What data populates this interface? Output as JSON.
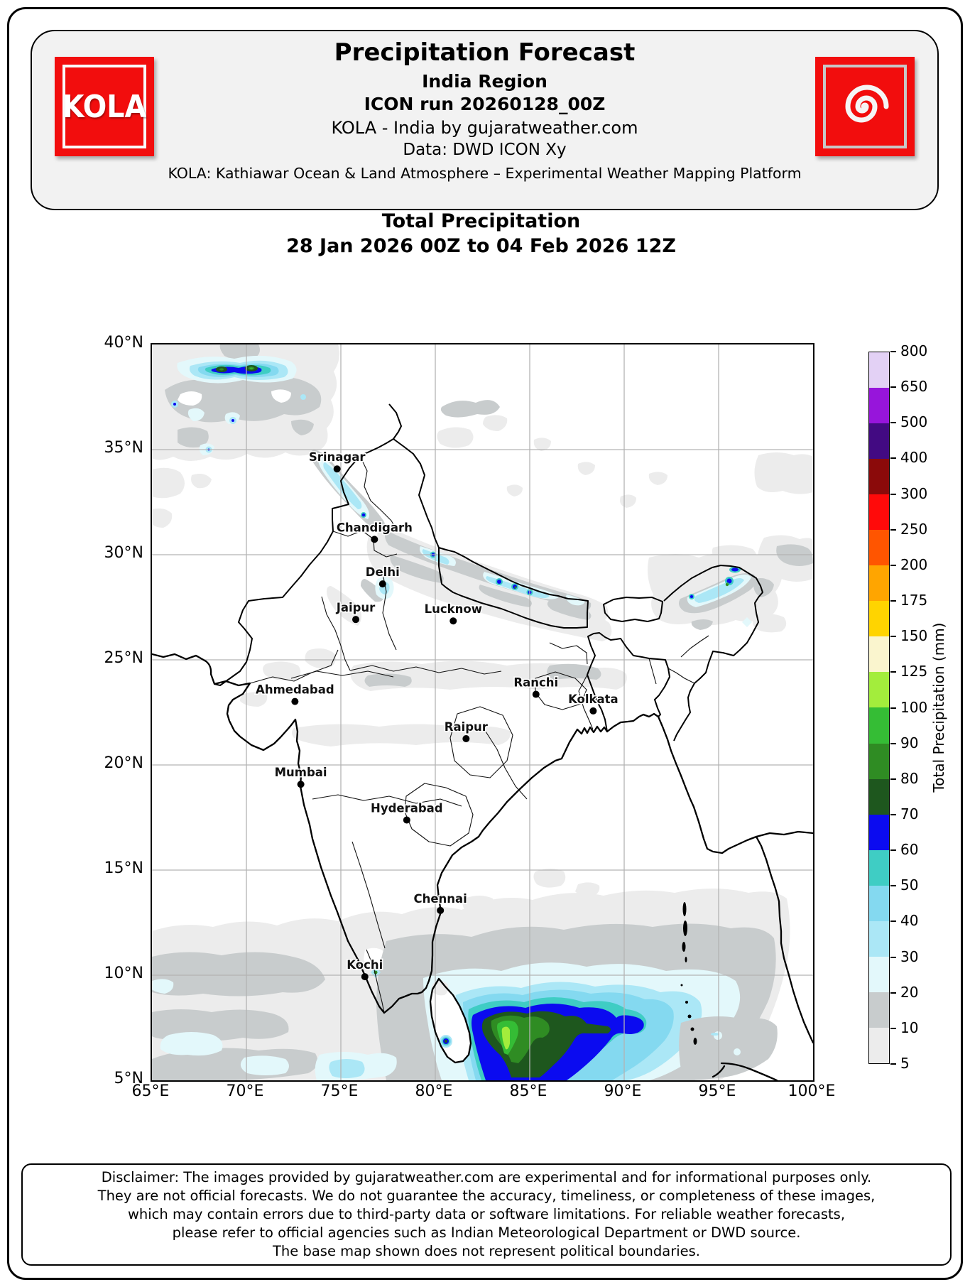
{
  "header": {
    "title": "Precipitation Forecast",
    "subtitle1": "India Region",
    "subtitle2": "ICON run 20260128_00Z",
    "subtitle3": "KOLA - India by gujaratweather.com",
    "subtitle4": "Data: DWD ICON Xy",
    "subtitle5": "KOLA: Kathiawar Ocean & Land Atmosphere – Experimental Weather Mapping Platform",
    "logo_text": "KOLA",
    "brand_color": "#f20d0d",
    "logo_right_icon": "cyclone-spiral"
  },
  "figure": {
    "title": "Total Precipitation",
    "period": "28 Jan 2026 00Z to 04 Feb 2026 12Z"
  },
  "map": {
    "lon_ticks": [
      "65°E",
      "70°E",
      "75°E",
      "80°E",
      "85°E",
      "90°E",
      "95°E",
      "100°E"
    ],
    "lat_ticks": [
      "40°N",
      "35°N",
      "30°N",
      "25°N",
      "20°N",
      "15°N",
      "10°N",
      "5°N"
    ],
    "lon_range": [
      65,
      100
    ],
    "lat_range": [
      5,
      40
    ],
    "grid_color": "#b3b3b3",
    "cities": [
      {
        "name": "Srinagar",
        "lon": 74.8,
        "lat": 34.08
      },
      {
        "name": "Chandigarh",
        "lon": 76.78,
        "lat": 30.73
      },
      {
        "name": "Delhi",
        "lon": 77.21,
        "lat": 28.61
      },
      {
        "name": "Jaipur",
        "lon": 75.79,
        "lat": 26.92
      },
      {
        "name": "Lucknow",
        "lon": 80.95,
        "lat": 26.85
      },
      {
        "name": "Ahmedabad",
        "lon": 72.57,
        "lat": 23.02
      },
      {
        "name": "Ranchi",
        "lon": 85.33,
        "lat": 23.36
      },
      {
        "name": "Kolkata",
        "lon": 88.36,
        "lat": 22.57
      },
      {
        "name": "Raipur",
        "lon": 81.63,
        "lat": 21.25
      },
      {
        "name": "Mumbai",
        "lon": 72.88,
        "lat": 19.08
      },
      {
        "name": "Hyderabad",
        "lon": 78.49,
        "lat": 17.38
      },
      {
        "name": "Chennai",
        "lon": 80.27,
        "lat": 13.08
      },
      {
        "name": "Kochi",
        "lon": 76.27,
        "lat": 9.93
      }
    ]
  },
  "colorbar": {
    "label": "Total Precipitation (mm)",
    "levels": [
      5,
      10,
      20,
      30,
      40,
      50,
      60,
      70,
      80,
      90,
      100,
      125,
      150,
      175,
      200,
      250,
      300,
      400,
      500,
      650,
      800
    ],
    "colors": [
      "#ececec",
      "#c8cccd",
      "#e3f8fb",
      "#abe7f6",
      "#84d9f0",
      "#3fcdc4",
      "#0b0bf0",
      "#1e571e",
      "#2f8c23",
      "#35bd35",
      "#a3ed3c",
      "#faf5ce",
      "#ffd400",
      "#ffa500",
      "#ff5500",
      "#ff0a0a",
      "#8b0a0a",
      "#420a82",
      "#9715db",
      "#e3d1f5"
    ]
  },
  "chart_data": {
    "type": "heatmap",
    "title": "Total Precipitation",
    "period": "28 Jan 2026 00Z to 04 Feb 2026 12Z",
    "units": "mm",
    "lon_range": [
      65,
      100
    ],
    "lat_range": [
      5,
      40
    ],
    "levels_mm": [
      5,
      10,
      20,
      30,
      40,
      50,
      60,
      70,
      80,
      90,
      100,
      125,
      150,
      175,
      200,
      250,
      300,
      400,
      500,
      650,
      800
    ],
    "features": [
      {
        "region": "Hindu Kush / NW corner (66-73E, 36-40N)",
        "values_mm": "10-90, cores ~80-90 near 68-71E 38.8N"
      },
      {
        "region": "Kashmir-Himachal belt (74-78E, 31-35N)",
        "values_mm": "10-40 with specks to 70"
      },
      {
        "region": "Himalaya arc Uttarakhand-Nepal (78-88E, 27-31N)",
        "values_mm": "10-40 with blue specks 60-70"
      },
      {
        "region": "Arunachal / NE hills (92-97E, 27-30N)",
        "values_mm": "10-50, specks 60-90"
      },
      {
        "region": "Indo-Gangetic plains around Delhi-Lucknow",
        "values_mm": "5-30"
      },
      {
        "region": "Central India (MP belt)",
        "values_mm": "5-20"
      },
      {
        "region": "Arabian Sea south of 12N",
        "values_mm": "5-30"
      },
      {
        "region": "SW Bay of Bengal / SE of Sri Lanka (80-95E, 5-10N)",
        "values_mm": "20-125, blue 60-70 lobe 81-90E, green 70-100 core 82-86E, max 100-125 near 83E 7N"
      },
      {
        "region": "Sri Lanka wet-zone spot (80.6E, 6.9N)",
        "values_mm": "to 70-80"
      }
    ]
  },
  "disclaimer": {
    "lines": [
      "Disclaimer: The images provided by gujaratweather.com are experimental and for informational purposes only.",
      "They are not official forecasts. We do not guarantee the accuracy, timeliness, or completeness of these images,",
      "which may contain errors due to third-party data or software limitations. For reliable weather forecasts,",
      "please refer to official agencies such as Indian Meteorological Department or DWD source.",
      "The base map shown does not represent political boundaries."
    ]
  }
}
